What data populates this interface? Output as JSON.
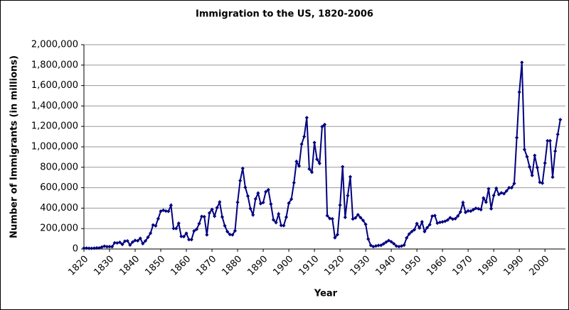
{
  "chart_data": {
    "type": "line",
    "title": "Immigration to the US, 1820-2006",
    "x_label": "Year",
    "y_label": "Number of Immigrants (in millions)",
    "xlim": [
      1820,
      2008
    ],
    "xticks": [
      1820,
      1830,
      1840,
      1850,
      1860,
      1870,
      1880,
      1890,
      1900,
      1910,
      1920,
      1930,
      1940,
      1950,
      1960,
      1970,
      1980,
      1990,
      2000
    ],
    "ylim": [
      0,
      2000000
    ],
    "yticks": [
      0,
      {
        "value": 200000,
        "label": "200,000"
      },
      {
        "value": 400000,
        "label": "400,000"
      },
      {
        "value": 600000,
        "label": "600,000"
      },
      {
        "value": 800000,
        "label": "800,000"
      },
      {
        "value": 1000000,
        "label": "1,000,000"
      },
      {
        "value": 1200000,
        "label": "1,200,000"
      },
      {
        "value": 1400000,
        "label": "1,400,000"
      },
      {
        "value": 1600000,
        "label": "1,600,000"
      },
      {
        "value": 1800000,
        "label": "1,800,000"
      },
      {
        "value": 2000000,
        "label": "2,000,000"
      }
    ],
    "grid": true,
    "x": [
      1820,
      1821,
      1822,
      1823,
      1824,
      1825,
      1826,
      1827,
      1828,
      1829,
      1830,
      1831,
      1832,
      1833,
      1834,
      1835,
      1836,
      1837,
      1838,
      1839,
      1840,
      1841,
      1842,
      1843,
      1844,
      1845,
      1846,
      1847,
      1848,
      1849,
      1850,
      1851,
      1852,
      1853,
      1854,
      1855,
      1856,
      1857,
      1858,
      1859,
      1860,
      1861,
      1862,
      1863,
      1864,
      1865,
      1866,
      1867,
      1868,
      1869,
      1870,
      1871,
      1872,
      1873,
      1874,
      1875,
      1876,
      1877,
      1878,
      1879,
      1880,
      1881,
      1882,
      1883,
      1884,
      1885,
      1886,
      1887,
      1888,
      1889,
      1890,
      1891,
      1892,
      1893,
      1894,
      1895,
      1896,
      1897,
      1898,
      1899,
      1900,
      1901,
      1902,
      1903,
      1904,
      1905,
      1906,
      1907,
      1908,
      1909,
      1910,
      1911,
      1912,
      1913,
      1914,
      1915,
      1916,
      1917,
      1918,
      1919,
      1920,
      1921,
      1922,
      1923,
      1924,
      1925,
      1926,
      1927,
      1928,
      1929,
      1930,
      1931,
      1932,
      1933,
      1934,
      1935,
      1936,
      1937,
      1938,
      1939,
      1940,
      1941,
      1942,
      1943,
      1944,
      1945,
      1946,
      1947,
      1948,
      1949,
      1950,
      1951,
      1952,
      1953,
      1954,
      1955,
      1956,
      1957,
      1958,
      1959,
      1960,
      1961,
      1962,
      1963,
      1964,
      1965,
      1966,
      1967,
      1968,
      1969,
      1970,
      1971,
      1972,
      1973,
      1974,
      1975,
      1976,
      1977,
      1978,
      1979,
      1980,
      1981,
      1982,
      1983,
      1984,
      1985,
      1986,
      1987,
      1988,
      1989,
      1990,
      1991,
      1992,
      1993,
      1994,
      1995,
      1996,
      1997,
      1998,
      1999,
      2000,
      2001,
      2002,
      2003,
      2004,
      2005,
      2006
    ],
    "series": [
      {
        "color": "#000080",
        "values": [
          8385,
          9127,
          6911,
          6354,
          7912,
          10199,
          10837,
          18875,
          27382,
          22520,
          23322,
          22633,
          60482,
          58640,
          65365,
          45374,
          76242,
          79340,
          38914,
          68069,
          84066,
          80289,
          104565,
          52496,
          78615,
          114371,
          154416,
          234968,
          226527,
          297024,
          369980,
          379466,
          371603,
          368645,
          427833,
          200877,
          200436,
          251306,
          123126,
          121282,
          153640,
          91918,
          91985,
          176282,
          193418,
          248120,
          318568,
          315722,
          138840,
          352768,
          387203,
          321350,
          404806,
          459803,
          313339,
          227498,
          169986,
          141857,
          138469,
          177826,
          457257,
          669431,
          788992,
          603322,
          518592,
          395346,
          334203,
          490109,
          546889,
          444427,
          455302,
          560319,
          579663,
          439730,
          285631,
          258536,
          343267,
          230832,
          229299,
          311715,
          448572,
          487918,
          648743,
          857046,
          812870,
          1026499,
          1100735,
          1285349,
          782870,
          751786,
          1041570,
          878587,
          838172,
          1197892,
          1218480,
          326700,
          298826,
          295403,
          110618,
          141132,
          430001,
          805228,
          309556,
          522919,
          706896,
          294314,
          304488,
          335175,
          307255,
          279678,
          241700,
          97139,
          35576,
          23068,
          29470,
          34956,
          36329,
          50244,
          67895,
          82998,
          70756,
          51776,
          28781,
          23725,
          28551,
          38119,
          108721,
          147292,
          170570,
          188317,
          249187,
          205717,
          265520,
          170434,
          208177,
          237790,
          321625,
          326867,
          253265,
          260686,
          265398,
          271344,
          283763,
          306260,
          292248,
          296697,
          323040,
          361972,
          454448,
          358579,
          373326,
          370478,
          384685,
          398515,
          393919,
          385378,
          499093,
          458755,
          589810,
          394244,
          524295,
          595014,
          533624,
          550052,
          541811,
          568149,
          600027,
          599889,
          641346,
          1090172,
          1535872,
          1826595,
          973977,
          903916,
          803993,
          720177,
          915560,
          797847,
          653206,
          644787,
          841002,
          1058902,
          1059356,
          703542,
          957883,
          1122257,
          1266129
        ]
      }
    ]
  }
}
